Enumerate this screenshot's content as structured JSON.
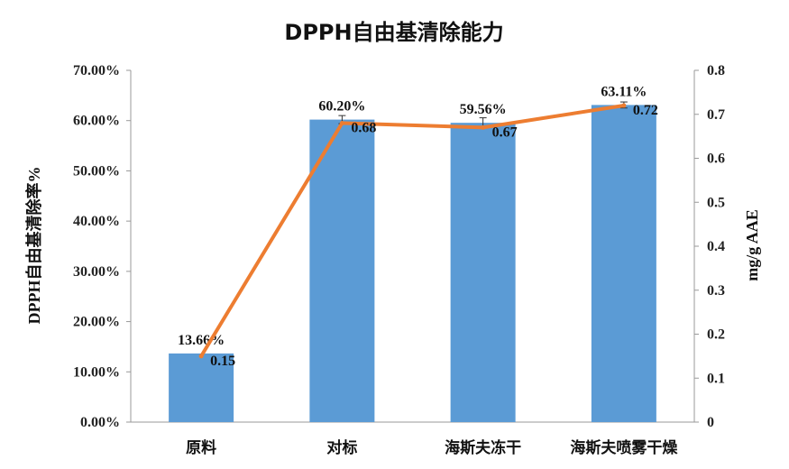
{
  "chart_data": {
    "type": "bar",
    "title": "DPPH自由基清除能力",
    "categories": [
      "原料",
      "对标",
      "海斯夫冻干",
      "海斯夫喷雾干燥"
    ],
    "series": [
      {
        "type": "bar",
        "axis": "left",
        "values": [
          13.66,
          60.2,
          59.56,
          63.11
        ],
        "labels": [
          "13.66%",
          "60.20%",
          "59.56%",
          "63.11%"
        ],
        "error": [
          0,
          0.8,
          1.0,
          0.6
        ],
        "color": "#5B9BD5"
      },
      {
        "type": "line",
        "axis": "right",
        "values": [
          0.15,
          0.68,
          0.67,
          0.72
        ],
        "labels": [
          "0.15",
          "0.68",
          "0.67",
          "0.72"
        ],
        "color": "#ED7D31"
      }
    ],
    "ylabel": "DPPH自由基清除率%",
    "y2label": "mg/g AAE",
    "ylim": [
      0,
      70
    ],
    "y2lim": [
      0,
      0.8
    ],
    "yticks": [
      "0.00%",
      "10.00%",
      "20.00%",
      "30.00%",
      "40.00%",
      "50.00%",
      "60.00%",
      "70.00%"
    ],
    "y2ticks": [
      "0",
      "0.1",
      "0.2",
      "0.3",
      "0.4",
      "0.5",
      "0.6",
      "0.7",
      "0.8"
    ],
    "grid": false,
    "legend": "none"
  }
}
